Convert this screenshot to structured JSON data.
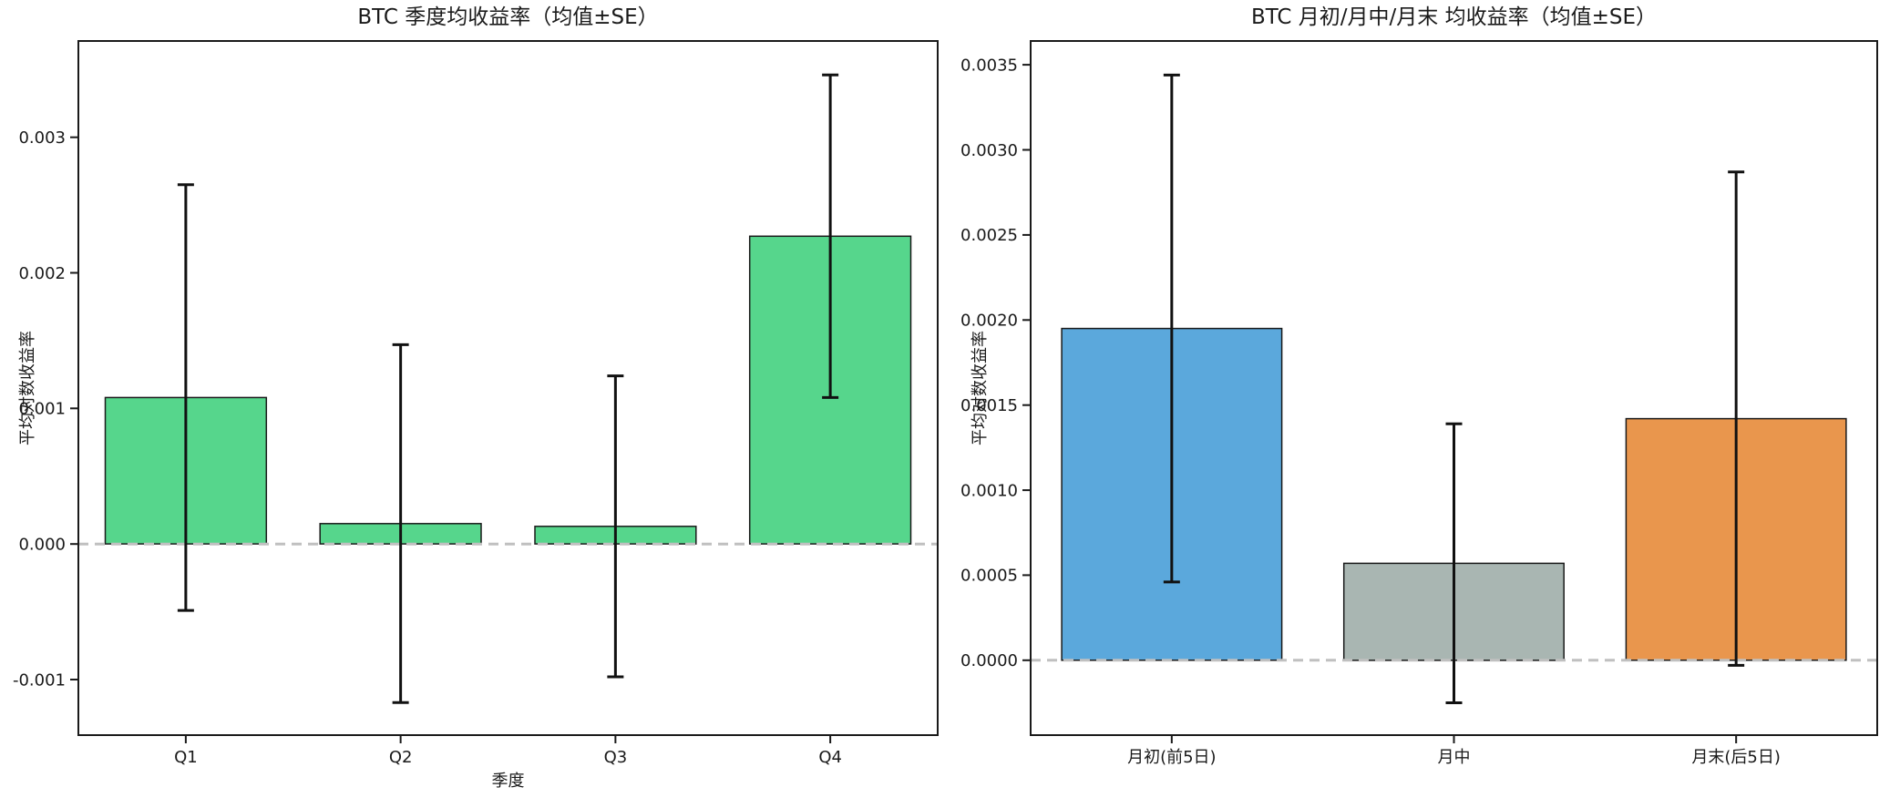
{
  "figure": {
    "background": "#ffffff",
    "text_color": "#1a1a1a",
    "spine_color": "#1a1a1a",
    "zero_line_color": "#c0c0c0",
    "error_bar_color": "#111111",
    "bar_edge_color": "#1a1a1a"
  },
  "chart_data": [
    {
      "type": "bar",
      "title": "BTC 季度均收益率（均值±SE）",
      "xlabel": "季度",
      "ylabel": "平均对数收益率",
      "categories": [
        "Q1",
        "Q2",
        "Q3",
        "Q4"
      ],
      "values": [
        0.00108,
        0.00015,
        0.00013,
        0.00227
      ],
      "errors_se": [
        0.00157,
        0.00132,
        0.00111,
        0.00119
      ],
      "bar_colors": [
        "#56d68c",
        "#56d68c",
        "#56d68c",
        "#56d68c"
      ],
      "yticks": [
        -0.001,
        0.0,
        0.001,
        0.002,
        0.003
      ],
      "ytick_labels": [
        "-0.001",
        "0.000",
        "0.001",
        "0.002",
        "0.003"
      ],
      "ylim": [
        -0.00141,
        0.00371
      ],
      "grid": false,
      "legend": false,
      "zero_dashed_line": true
    },
    {
      "type": "bar",
      "title": "BTC 月初/月中/月末 均收益率（均值±SE）",
      "xlabel": "",
      "ylabel": "平均对数收益率",
      "categories": [
        "月初(前5日)",
        "月中",
        "月末(后5日)"
      ],
      "values": [
        0.00195,
        0.00057,
        0.00142
      ],
      "errors_se": [
        0.00149,
        0.00082,
        0.00145
      ],
      "bar_colors": [
        "#5ba8dc",
        "#a9b6b2",
        "#e9964d"
      ],
      "yticks": [
        0.0,
        0.0005,
        0.001,
        0.0015,
        0.002,
        0.0025,
        0.003,
        0.0035
      ],
      "ytick_labels": [
        "0.0000",
        "0.0005",
        "0.0010",
        "0.0015",
        "0.0020",
        "0.0025",
        "0.0030",
        "0.0035"
      ],
      "ylim": [
        -0.00044,
        0.00364
      ],
      "grid": false,
      "legend": false,
      "zero_dashed_line": true
    }
  ]
}
